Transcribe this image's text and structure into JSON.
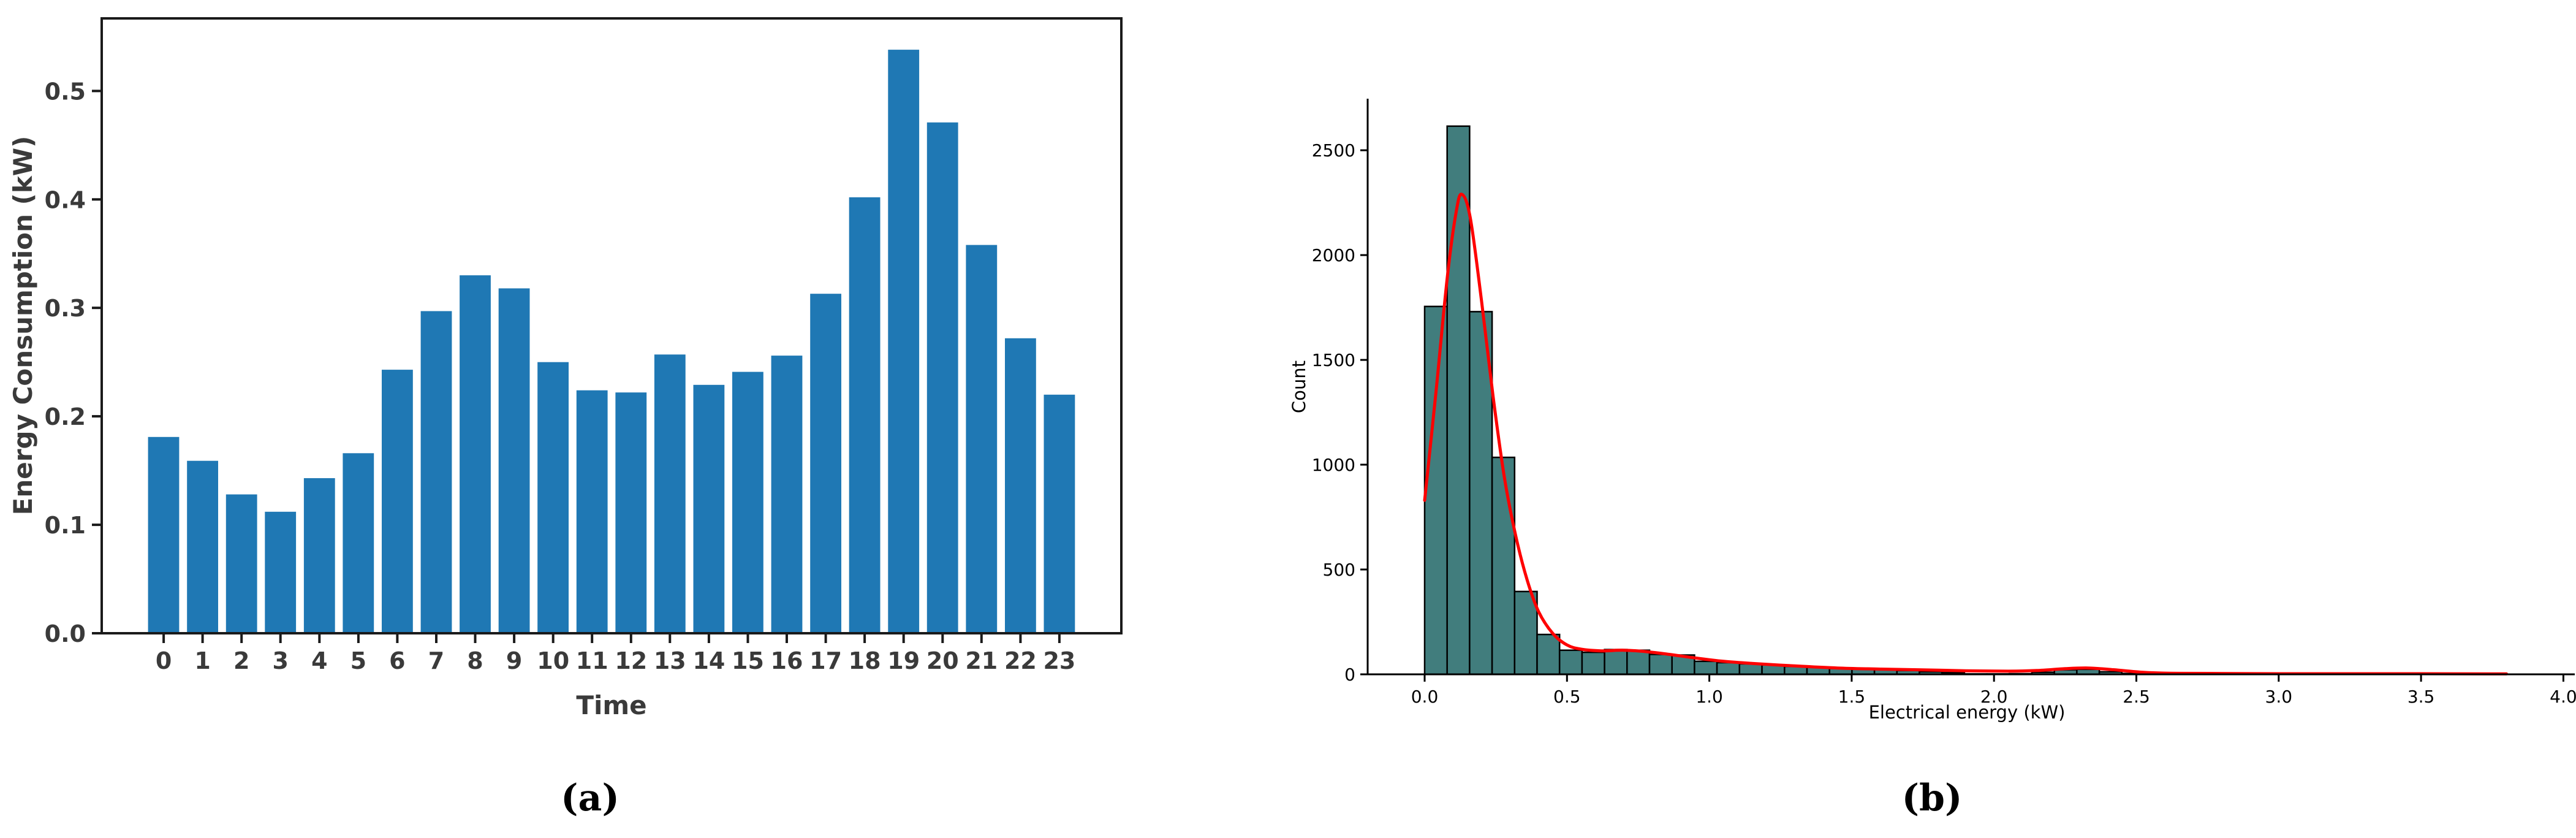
{
  "captions": {
    "a": "(a)",
    "b": "(b)"
  },
  "chart_data": [
    {
      "id": "panel-a",
      "type": "bar",
      "title": "",
      "xlabel": "Time",
      "ylabel": "Energy Consumption (kW)",
      "categories": [
        "0",
        "1",
        "2",
        "3",
        "4",
        "5",
        "6",
        "7",
        "8",
        "9",
        "10",
        "11",
        "12",
        "13",
        "14",
        "15",
        "16",
        "17",
        "18",
        "19",
        "20",
        "21",
        "22",
        "23"
      ],
      "values": [
        0.181,
        0.159,
        0.128,
        0.112,
        0.143,
        0.166,
        0.243,
        0.297,
        0.33,
        0.318,
        0.25,
        0.224,
        0.222,
        0.257,
        0.229,
        0.241,
        0.256,
        0.313,
        0.402,
        0.538,
        0.471,
        0.358,
        0.272,
        0.22
      ],
      "ylim": [
        0,
        0.5669
      ],
      "yticks": [
        "0.0",
        "0.1",
        "0.2",
        "0.3",
        "0.4",
        "0.5"
      ],
      "grid": false,
      "legend": "none",
      "bar_color": "#1f78b4",
      "text_color": "#3a3a3a",
      "spine_color": "#1a1a1a"
    },
    {
      "id": "panel-b",
      "type": "histogram",
      "kde_overlay": true,
      "title": "",
      "xlabel": "Electrical energy (kW)",
      "ylabel": "Count",
      "bin_start": 0.0,
      "bin_width": 0.079,
      "bin_counts": [
        1755,
        2615,
        1730,
        1035,
        395,
        190,
        115,
        105,
        118,
        115,
        95,
        92,
        62,
        56,
        50,
        45,
        38,
        33,
        28,
        25,
        23,
        18,
        12,
        8,
        2,
        2,
        3,
        10,
        22,
        24,
        12,
        4,
        1,
        1,
        1,
        1,
        1,
        1,
        1,
        1,
        1,
        1,
        1,
        1,
        1,
        1,
        1,
        1
      ],
      "kde": [
        [
          0.0,
          830
        ],
        [
          0.04,
          1350
        ],
        [
          0.08,
          1900
        ],
        [
          0.11,
          2200
        ],
        [
          0.13,
          2290
        ],
        [
          0.16,
          2180
        ],
        [
          0.2,
          1780
        ],
        [
          0.24,
          1330
        ],
        [
          0.28,
          940
        ],
        [
          0.32,
          660
        ],
        [
          0.36,
          450
        ],
        [
          0.4,
          300
        ],
        [
          0.45,
          195
        ],
        [
          0.5,
          140
        ],
        [
          0.55,
          120
        ],
        [
          0.62,
          112
        ],
        [
          0.7,
          115
        ],
        [
          0.78,
          108
        ],
        [
          0.86,
          95
        ],
        [
          0.95,
          78
        ],
        [
          1.05,
          62
        ],
        [
          1.15,
          52
        ],
        [
          1.3,
          40
        ],
        [
          1.45,
          30
        ],
        [
          1.6,
          25
        ],
        [
          1.75,
          21
        ],
        [
          1.9,
          17
        ],
        [
          2.05,
          15
        ],
        [
          2.15,
          18
        ],
        [
          2.25,
          27
        ],
        [
          2.33,
          30
        ],
        [
          2.42,
          22
        ],
        [
          2.52,
          10
        ],
        [
          2.62,
          5
        ],
        [
          2.8,
          4
        ],
        [
          3.0,
          3
        ],
        [
          3.2,
          3
        ],
        [
          3.5,
          3
        ],
        [
          3.8,
          2
        ]
      ],
      "xlim": [
        -0.2,
        4.04
      ],
      "ylim": [
        0,
        2746
      ],
      "xticks": [
        "0.0",
        "0.5",
        "1.0",
        "1.5",
        "2.0",
        "2.5",
        "3.0",
        "3.5",
        "4.0"
      ],
      "yticks": [
        "0",
        "500",
        "1000",
        "1500",
        "2000",
        "2500"
      ],
      "grid": false,
      "legend": "none",
      "bar_color": "#417d7d",
      "bar_edge_color": "#000000",
      "line_color": "#ff0000",
      "text_color": "#000000",
      "spine_color": "#000000"
    }
  ]
}
